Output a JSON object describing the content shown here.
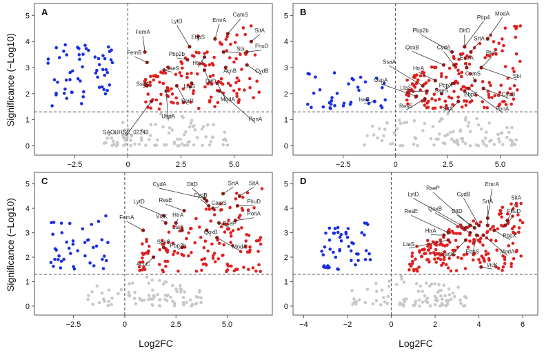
{
  "figure": {
    "xlabel": "Log2FC",
    "ylabel": "Significance (−Log10)"
  },
  "colors": {
    "up": "#e02020",
    "down": "#1a2ee0",
    "ns": "#c8c8c8",
    "highlight": "#8b1a1a"
  },
  "chart_data": [
    {
      "type": "scatter",
      "panel_label": "A",
      "title": "",
      "xlim": [
        -4.2,
        6.6
      ],
      "ylim": [
        -0.2,
        5.3
      ],
      "xticks": [
        -2.5,
        0,
        2.5,
        5.0
      ],
      "xtick_labels": [
        "−2.5",
        "0",
        "2.5",
        "5.0"
      ],
      "yticks": [
        0,
        1,
        2,
        3,
        4,
        5
      ],
      "ytick_labels": [
        "0",
        "1",
        "2",
        "3",
        "4",
        "5"
      ],
      "vline_x": 0,
      "hline_y": 1.3,
      "down_range": {
        "x": [
          -3.8,
          -0.6
        ],
        "y": [
          1.5,
          3.9
        ],
        "n": 58
      },
      "up_range": {
        "x": [
          0.7,
          6.2
        ],
        "y": [
          1.4,
          4.6
        ],
        "n": 130
      },
      "ns_range": {
        "x": [
          -1.2,
          4.8
        ],
        "y": [
          0.0,
          1.3
        ],
        "n": 90
      },
      "labels": [
        {
          "name": "CamS",
          "x": 4.7,
          "y": 4.3,
          "tx": 5.3,
          "ty": 4.95
        },
        {
          "name": "EmrA",
          "x": 4.1,
          "y": 4.1,
          "tx": 4.3,
          "ty": 4.75
        },
        {
          "name": "LytD",
          "x": 2.9,
          "y": 3.8,
          "tx": 2.3,
          "ty": 4.7
        },
        {
          "name": "SitA",
          "x": 5.8,
          "y": 4.0,
          "tx": 6.2,
          "ty": 4.35
        },
        {
          "name": "EbpS",
          "x": 3.3,
          "y": 4.2,
          "tx": 3.3,
          "ty": 4.1
        },
        {
          "name": "FemA",
          "x": 0.8,
          "y": 3.6,
          "tx": 0.7,
          "ty": 4.3
        },
        {
          "name": "FhuD",
          "x": 5.6,
          "y": 3.6,
          "tx": 6.3,
          "ty": 3.75
        },
        {
          "name": "HtrA",
          "x": 3.6,
          "y": 3.4,
          "tx": 3.3,
          "ty": 3.1
        },
        {
          "name": "Sbi",
          "x": 4.5,
          "y": 3.6,
          "tx": 5.3,
          "ty": 3.65
        },
        {
          "name": "FemB",
          "x": 0.9,
          "y": 3.2,
          "tx": 0.3,
          "ty": 3.5
        },
        {
          "name": "Pbp2b",
          "x": 2.8,
          "y": 3.3,
          "tx": 2.3,
          "ty": 3.45
        },
        {
          "name": "SaeS",
          "x": 1.7,
          "y": 2.9,
          "tx": 2.1,
          "ty": 2.9
        },
        {
          "name": "CydB",
          "x": 5.6,
          "y": 3.1,
          "tx": 6.3,
          "ty": 2.8
        },
        {
          "name": "AcnB",
          "x": 4.6,
          "y": 3.0,
          "tx": 4.8,
          "ty": 2.8
        },
        {
          "name": "DltD",
          "x": 3.6,
          "y": 2.9,
          "tx": 3.9,
          "ty": 2.4
        },
        {
          "name": "SsaA",
          "x": 0.9,
          "y": 2.3,
          "tx": 0.7,
          "ty": 2.3
        },
        {
          "name": "LtaS",
          "x": 3.0,
          "y": 2.4,
          "tx": 2.9,
          "ty": 2.2
        },
        {
          "name": "ModA",
          "x": 4.2,
          "y": 2.4,
          "tx": 4.7,
          "ty": 1.7
        },
        {
          "name": "SarR",
          "x": 2.3,
          "y": 2.3,
          "tx": 2.8,
          "ty": 1.65
        },
        {
          "name": "PonA",
          "x": 4.3,
          "y": 2.1,
          "tx": 6.0,
          "ty": 0.95
        },
        {
          "name": "UspA",
          "x": 1.8,
          "y": 2.1,
          "tx": 1.9,
          "ty": 1.05
        },
        {
          "name": "SAOUHSC_02243",
          "x": 1.1,
          "y": 1.7,
          "tx": -0.1,
          "ty": 0.45
        }
      ]
    },
    {
      "type": "scatter",
      "panel_label": "B",
      "title": "",
      "xlim": [
        -4.7,
        6.6
      ],
      "ylim": [
        -0.2,
        5.3
      ],
      "xticks": [
        -2.5,
        0,
        2.5,
        5.0
      ],
      "xtick_labels": [
        "−2.5",
        "0",
        "2.5",
        "5.0"
      ],
      "yticks": [
        0,
        1,
        2,
        3,
        4,
        5
      ],
      "ytick_labels": [
        "0",
        "1",
        "2",
        "3",
        "4",
        "5"
      ],
      "vline_x": 0,
      "hline_y": 1.3,
      "down_range": {
        "x": [
          -4.3,
          -0.4
        ],
        "y": [
          1.4,
          2.8
        ],
        "n": 36
      },
      "up_range": {
        "x": [
          0.5,
          6.0
        ],
        "y": [
          1.4,
          4.6
        ],
        "n": 150
      },
      "ns_range": {
        "x": [
          -1.5,
          6.0
        ],
        "y": [
          0.0,
          1.3
        ],
        "n": 95
      },
      "labels": [
        {
          "name": "ModA",
          "x": 4.4,
          "y": 4.1,
          "tx": 5.1,
          "ty": 5.0
        },
        {
          "name": "Pbp4",
          "x": 3.3,
          "y": 3.8,
          "tx": 4.2,
          "ty": 4.85
        },
        {
          "name": "DltD",
          "x": 3.3,
          "y": 3.8,
          "tx": 3.3,
          "ty": 4.35
        },
        {
          "name": "SrtA",
          "x": 3.6,
          "y": 3.6,
          "tx": 4.0,
          "ty": 4.05
        },
        {
          "name": "Pbp2b",
          "x": 2.7,
          "y": 3.6,
          "tx": 1.2,
          "ty": 4.35
        },
        {
          "name": "QoxB",
          "x": 2.3,
          "y": 3.1,
          "tx": 0.8,
          "ty": 3.7
        },
        {
          "name": "CydA",
          "x": 2.8,
          "y": 3.1,
          "tx": 2.3,
          "ty": 3.7
        },
        {
          "name": "EmrA",
          "x": 3.4,
          "y": 3.0,
          "tx": 3.4,
          "ty": 3.3
        },
        {
          "name": "BtuF",
          "x": 4.1,
          "y": 3.0,
          "tx": 4.6,
          "ty": 3.5
        },
        {
          "name": "Sbi",
          "x": 4.1,
          "y": 3.0,
          "tx": 5.8,
          "ty": 2.6
        },
        {
          "name": "SsaA",
          "x": 1.3,
          "y": 2.3,
          "tx": -0.3,
          "ty": 3.15
        },
        {
          "name": "HtrA",
          "x": 1.9,
          "y": 2.5,
          "tx": 1.1,
          "ty": 2.9
        },
        {
          "name": "CamS",
          "x": 3.8,
          "y": 2.5,
          "tx": 3.7,
          "ty": 2.7
        },
        {
          "name": "PbpX",
          "x": 2.8,
          "y": 2.4,
          "tx": 2.4,
          "ty": 2.25
        },
        {
          "name": "LtaS",
          "x": 1.5,
          "y": 2.1,
          "tx": 0.5,
          "ty": 2.15
        },
        {
          "name": "SaeS",
          "x": 2.2,
          "y": 2.0,
          "tx": 2.2,
          "ty": 2.05
        },
        {
          "name": "UspA",
          "x": 1.0,
          "y": 1.9,
          "tx": -0.7,
          "ty": 2.45
        },
        {
          "name": "EbpS",
          "x": 3.3,
          "y": 2.1,
          "tx": 3.6,
          "ty": 1.9
        },
        {
          "name": "CydB",
          "x": 4.2,
          "y": 2.2,
          "tx": 5.4,
          "ty": 1.9
        },
        {
          "name": "IsaB",
          "x": -1.0,
          "y": 1.7,
          "tx": -1.5,
          "ty": 1.7
        },
        {
          "name": "ResE",
          "x": 1.4,
          "y": 1.8,
          "tx": 0.5,
          "ty": 1.45
        },
        {
          "name": "SitA",
          "x": 3.0,
          "y": 1.7,
          "tx": 2.5,
          "ty": 1.35
        },
        {
          "name": "PonA",
          "x": 3.5,
          "y": 2.2,
          "tx": 5.1,
          "ty": 1.35
        }
      ]
    },
    {
      "type": "scatter",
      "panel_label": "C",
      "title": "",
      "xlim": [
        -4.2,
        7.0
      ],
      "ylim": [
        -0.2,
        5.3
      ],
      "xticks": [
        -2.5,
        0,
        2.5,
        5.0
      ],
      "xtick_labels": [
        "−2.5",
        "0",
        "2.5",
        "5.0"
      ],
      "yticks": [
        0,
        1,
        2,
        3,
        4,
        5
      ],
      "ytick_labels": [
        "0",
        "1",
        "2",
        "3",
        "4",
        "5"
      ],
      "vline_x": 0,
      "hline_y": 1.3,
      "down_range": {
        "x": [
          -3.7,
          -0.8
        ],
        "y": [
          1.4,
          3.7
        ],
        "n": 42
      },
      "up_range": {
        "x": [
          0.7,
          6.7
        ],
        "y": [
          1.4,
          4.8
        ],
        "n": 140
      },
      "ns_range": {
        "x": [
          -1.8,
          3.8
        ],
        "y": [
          0.0,
          1.3
        ],
        "n": 85
      },
      "labels": [
        {
          "name": "SrtA",
          "x": 4.8,
          "y": 4.6,
          "tx": 5.3,
          "ty": 4.95
        },
        {
          "name": "SitA",
          "x": 5.6,
          "y": 4.5,
          "tx": 6.3,
          "ty": 4.95
        },
        {
          "name": "CydA",
          "x": 3.9,
          "y": 4.4,
          "tx": 1.7,
          "ty": 4.9
        },
        {
          "name": "DltD",
          "x": 4.0,
          "y": 4.3,
          "tx": 3.3,
          "ty": 4.9
        },
        {
          "name": "CydB",
          "x": 4.1,
          "y": 4.1,
          "tx": 3.7,
          "ty": 4.45
        },
        {
          "name": "CamS",
          "x": 4.3,
          "y": 4.0,
          "tx": 4.6,
          "ty": 4.15
        },
        {
          "name": "FhuD",
          "x": 5.5,
          "y": 4.1,
          "tx": 6.3,
          "ty": 4.2
        },
        {
          "name": "LytD",
          "x": 1.9,
          "y": 3.7,
          "tx": 0.7,
          "ty": 4.2
        },
        {
          "name": "ResE",
          "x": 2.9,
          "y": 3.9,
          "tx": 2.0,
          "ty": 4.25
        },
        {
          "name": "PonA",
          "x": 5.4,
          "y": 3.5,
          "tx": 6.3,
          "ty": 3.7
        },
        {
          "name": "VicK",
          "x": 2.0,
          "y": 3.4,
          "tx": 1.8,
          "ty": 3.6
        },
        {
          "name": "HtrA",
          "x": 2.5,
          "y": 3.4,
          "tx": 2.6,
          "ty": 3.65
        },
        {
          "name": "FemA",
          "x": 0.9,
          "y": 3.1,
          "tx": 0.1,
          "ty": 3.55
        },
        {
          "name": "RseP",
          "x": 4.6,
          "y": 3.4,
          "tx": 5.1,
          "ty": 3.3
        },
        {
          "name": "LtaS",
          "x": 2.8,
          "y": 3.1,
          "tx": 2.6,
          "ty": 3.15
        },
        {
          "name": "QoxB",
          "x": 4.0,
          "y": 3.1,
          "tx": 4.2,
          "ty": 2.95
        },
        {
          "name": "SaeS",
          "x": 1.9,
          "y": 2.4,
          "tx": 1.9,
          "ty": 2.55
        },
        {
          "name": "Pbp2b",
          "x": 2.8,
          "y": 2.4,
          "tx": 2.6,
          "ty": 2.4
        },
        {
          "name": "ModA",
          "x": 4.5,
          "y": 2.8,
          "tx": 5.6,
          "ty": 2.35
        },
        {
          "name": "AcnC",
          "x": 1.4,
          "y": 2.0,
          "tx": 0.9,
          "ty": 1.65
        }
      ]
    },
    {
      "type": "scatter",
      "panel_label": "D",
      "title": "",
      "xlim": [
        -4.3,
        6.5
      ],
      "ylim": [
        -0.2,
        5.3
      ],
      "xticks": [
        -4,
        -2,
        0,
        2,
        4,
        6
      ],
      "xtick_labels": [
        "−4",
        "−2",
        "0",
        "2",
        "4",
        "6"
      ],
      "yticks": [
        0,
        1,
        2,
        3,
        4,
        5
      ],
      "ytick_labels": [
        "0",
        "1",
        "2",
        "3",
        "4",
        "5"
      ],
      "vline_x": 0,
      "hline_y": 1.3,
      "down_range": {
        "x": [
          -3.3,
          -0.9
        ],
        "y": [
          1.5,
          3.4
        ],
        "n": 50
      },
      "up_range": {
        "x": [
          0.8,
          6.0
        ],
        "y": [
          1.4,
          4.2
        ],
        "n": 175
      },
      "ns_range": {
        "x": [
          -1.8,
          3.5
        ],
        "y": [
          0.0,
          1.3
        ],
        "n": 90
      },
      "labels": [
        {
          "name": "EmrA",
          "x": 4.4,
          "y": 3.6,
          "tx": 4.6,
          "ty": 4.9
        },
        {
          "name": "RseP",
          "x": 3.6,
          "y": 3.3,
          "tx": 1.9,
          "ty": 4.75
        },
        {
          "name": "LytD",
          "x": 3.4,
          "y": 3.2,
          "tx": 1.0,
          "ty": 4.5
        },
        {
          "name": "CydB",
          "x": 4.0,
          "y": 3.3,
          "tx": 3.3,
          "ty": 4.5
        },
        {
          "name": "SitA",
          "x": 5.3,
          "y": 3.5,
          "tx": 5.7,
          "ty": 4.35
        },
        {
          "name": "SrtA",
          "x": 4.4,
          "y": 3.3,
          "tx": 4.4,
          "ty": 4.2
        },
        {
          "name": "QoxB",
          "x": 3.6,
          "y": 3.0,
          "tx": 2.0,
          "ty": 3.9
        },
        {
          "name": "DltD",
          "x": 3.8,
          "y": 3.2,
          "tx": 3.0,
          "ty": 3.8
        },
        {
          "name": "FhuD",
          "x": 5.2,
          "y": 3.3,
          "tx": 5.6,
          "ty": 3.8
        },
        {
          "name": "ResE",
          "x": 2.6,
          "y": 3.0,
          "tx": 0.9,
          "ty": 3.8
        },
        {
          "name": "PbpX",
          "x": 4.7,
          "y": 3.1,
          "tx": 5.4,
          "ty": 2.8
        },
        {
          "name": "HtrA",
          "x": 2.4,
          "y": 2.9,
          "tx": 1.8,
          "ty": 3.0
        },
        {
          "name": "LtaS",
          "x": 2.6,
          "y": 2.7,
          "tx": 0.8,
          "ty": 2.45
        },
        {
          "name": "ModA",
          "x": 4.2,
          "y": 2.9,
          "tx": 5.3,
          "ty": 2.15
        },
        {
          "name": "CamS",
          "x": 3.4,
          "y": 2.7,
          "tx": 2.6,
          "ty": 2.05
        },
        {
          "name": "EbpS",
          "x": 3.9,
          "y": 2.9,
          "tx": 3.7,
          "ty": 2.15
        },
        {
          "name": "VicK",
          "x": 4.1,
          "y": 1.6,
          "tx": 4.6,
          "ty": 1.6
        }
      ]
    }
  ]
}
